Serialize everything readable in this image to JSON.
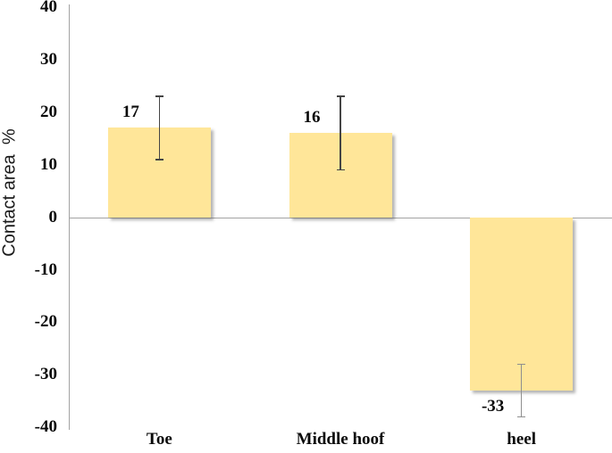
{
  "chart_data": {
    "type": "bar",
    "categories": [
      "Toe",
      "Middle hoof",
      "heel"
    ],
    "values": [
      17,
      16,
      -33
    ],
    "value_labels": [
      "17",
      "16",
      "-33"
    ],
    "error_plus": [
      6,
      7,
      5
    ],
    "error_minus": [
      6,
      7,
      5
    ],
    "ylabel": "Contact area  %",
    "ylim": [
      -40,
      40
    ],
    "yticks": [
      40,
      30,
      20,
      10,
      0,
      -10,
      -20,
      -30,
      -40
    ],
    "grid": "off",
    "legend": "none",
    "bar_color": "#FFE699",
    "bar_shadow": true,
    "axis_color": "#a3a3a3",
    "error_bar_colors": [
      "#454545",
      "#454545",
      "#8f8f8f"
    ],
    "text_color": "#0a0a0a",
    "background": "#ffffff"
  }
}
